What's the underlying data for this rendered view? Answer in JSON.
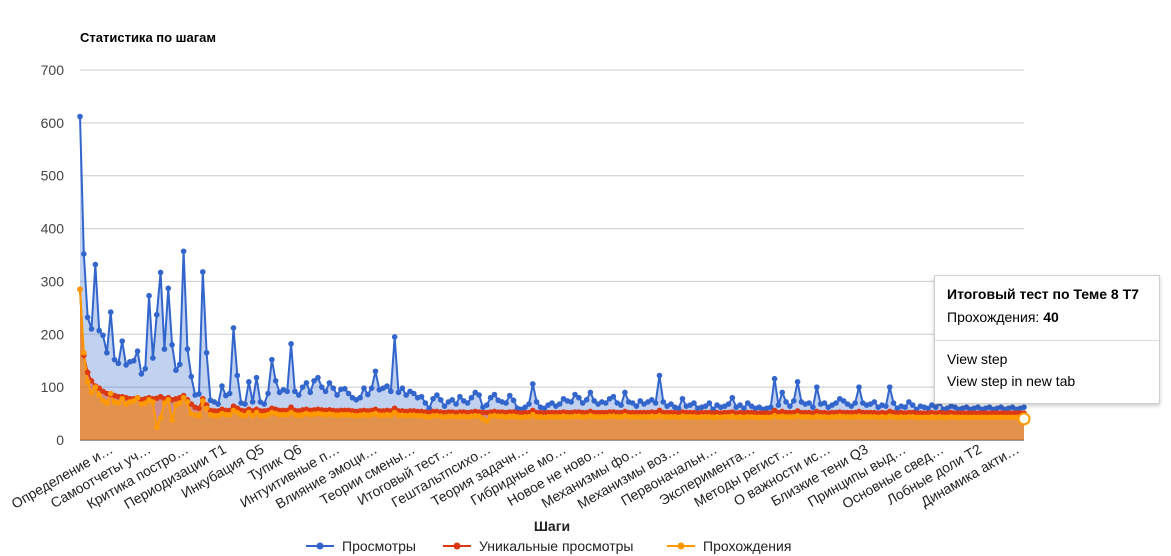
{
  "chart_data": {
    "type": "area",
    "title": "Статистика по шагам",
    "xlabel": "Шаги",
    "ylabel": "",
    "ylim": [
      0,
      700
    ],
    "yticks": [
      0,
      100,
      200,
      300,
      400,
      500,
      600,
      700
    ],
    "grid": true,
    "legend_position": "bottom",
    "x_tick_labels": [
      "Определение и…",
      "Самоотчеты уч…",
      "Критика постро…",
      "Периодизации Т1",
      "Инкубация Q5",
      "Тупик Q6",
      "Интуитивные п…",
      "Влияние эмоци…",
      "Теории смены…",
      "Итоговый тест…",
      "Гештальтпсихо…",
      "Теория задачн…",
      "Гибридные мо…",
      "Новое не ново…",
      "Механизмы фо…",
      "Механизмы воз…",
      "Первоначальн…",
      "Эксперимента…",
      "Методы регист…",
      "О важности ис…",
      "Близкие тени Q3",
      "Принципы выд…",
      "Основные свед…",
      "Лобные доли Т2",
      "Динамика акти…"
    ],
    "series": [
      {
        "name": "Просмотры",
        "color": "#3366cc",
        "values": [
          612,
          352,
          232,
          210,
          332,
          207,
          198,
          165,
          242,
          152,
          145,
          187,
          142,
          148,
          150,
          168,
          125,
          135,
          273,
          155,
          237,
          317,
          172,
          287,
          180,
          132,
          143,
          357,
          172,
          120,
          85,
          87,
          318,
          165,
          75,
          72,
          68,
          102,
          84,
          88,
          212,
          122,
          70,
          68,
          110,
          72,
          118,
          72,
          68,
          88,
          152,
          112,
          90,
          95,
          92,
          182,
          92,
          85,
          100,
          108,
          90,
          112,
          118,
          100,
          92,
          108,
          98,
          85,
          96,
          97,
          88,
          80,
          76,
          80,
          98,
          86,
          98,
          130,
          95,
          98,
          102,
          92,
          195,
          90,
          98,
          85,
          92,
          88,
          80,
          82,
          70,
          60,
          78,
          85,
          76,
          64,
          72,
          76,
          68,
          82,
          74,
          70,
          80,
          90,
          85,
          62,
          66,
          80,
          86,
          75,
          72,
          70,
          84,
          75,
          60,
          58,
          62,
          68,
          106,
          72,
          62,
          60,
          66,
          70,
          64,
          68,
          78,
          74,
          72,
          86,
          80,
          70,
          76,
          90,
          74,
          68,
          72,
          70,
          78,
          82,
          70,
          66,
          90,
          72,
          70,
          64,
          74,
          68,
          72,
          76,
          70,
          122,
          72,
          64,
          68,
          62,
          60,
          78,
          64,
          66,
          70,
          60,
          62,
          64,
          70,
          58,
          66,
          62,
          64,
          68,
          80,
          62,
          66,
          60,
          70,
          64,
          60,
          62,
          58,
          60,
          62,
          116,
          66,
          90,
          72,
          64,
          74,
          110,
          72,
          68,
          70,
          62,
          100,
          68,
          70,
          62,
          66,
          70,
          78,
          74,
          68,
          64,
          70,
          100,
          70,
          66,
          68,
          72,
          62,
          66,
          64,
          100,
          70,
          60,
          64,
          62,
          72,
          66,
          58,
          64,
          62,
          60,
          66,
          62,
          70,
          58,
          60,
          64,
          62,
          58,
          60,
          62,
          58,
          60,
          62,
          58,
          60,
          62,
          58,
          60,
          62,
          58,
          60,
          62,
          58,
          60,
          62
        ]
      },
      {
        "name": "Уникальные просмотры",
        "color": "#dc3912",
        "values": [
          285,
          160,
          128,
          112,
          102,
          98,
          92,
          88,
          86,
          84,
          82,
          82,
          80,
          78,
          78,
          80,
          76,
          78,
          80,
          78,
          79,
          82,
          78,
          80,
          76,
          78,
          80,
          84,
          76,
          68,
          62,
          60,
          78,
          66,
          56,
          55,
          55,
          58,
          56,
          56,
          64,
          60,
          56,
          55,
          58,
          55,
          58,
          55,
          55,
          56,
          60,
          58,
          56,
          56,
          56,
          62,
          56,
          55,
          57,
          58,
          56,
          57,
          58,
          57,
          56,
          57,
          56,
          55,
          56,
          56,
          56,
          55,
          54,
          55,
          56,
          55,
          56,
          58,
          55,
          55,
          56,
          55,
          60,
          55,
          55,
          54,
          55,
          55,
          54,
          54,
          53,
          52,
          54,
          54,
          53,
          52,
          53,
          53,
          52,
          53,
          53,
          52,
          53,
          54,
          53,
          52,
          52,
          53,
          54,
          53,
          53,
          52,
          53,
          53,
          52,
          51,
          52,
          52,
          56,
          52,
          52,
          51,
          52,
          52,
          52,
          52,
          53,
          52,
          52,
          53,
          53,
          52,
          52,
          54,
          52,
          52,
          52,
          52,
          53,
          53,
          52,
          52,
          54,
          52,
          52,
          52,
          52,
          52,
          52,
          53,
          52,
          56,
          52,
          52,
          52,
          52,
          51,
          53,
          52,
          52,
          52,
          51,
          52,
          52,
          52,
          51,
          52,
          51,
          52,
          52,
          53,
          51,
          52,
          51,
          52,
          52,
          51,
          51,
          51,
          51,
          51,
          56,
          52,
          54,
          52,
          52,
          52,
          55,
          52,
          52,
          52,
          51,
          54,
          52,
          52,
          51,
          52,
          52,
          53,
          52,
          52,
          52,
          52,
          54,
          52,
          52,
          52,
          52,
          51,
          52,
          51,
          54,
          52,
          51,
          52,
          51,
          52,
          52,
          51,
          51,
          51,
          51,
          52,
          51,
          52,
          51,
          51,
          52,
          51,
          51,
          51,
          51,
          51,
          51,
          51,
          51,
          51,
          51,
          51,
          51,
          51,
          51,
          51,
          51,
          51,
          51,
          51
        ]
      },
      {
        "name": "Прохождения",
        "color": "#ff9900",
        "values": [
          285,
          165,
          110,
          90,
          100,
          85,
          75,
          70,
          88,
          72,
          70,
          78,
          68,
          72,
          74,
          80,
          68,
          70,
          76,
          72,
          24,
          42,
          70,
          76,
          38,
          66,
          70,
          80,
          72,
          50,
          48,
          46,
          74,
          60,
          48,
          46,
          46,
          50,
          48,
          48,
          56,
          52,
          48,
          46,
          52,
          46,
          52,
          46,
          46,
          48,
          52,
          50,
          48,
          48,
          48,
          52,
          48,
          47,
          48,
          50,
          48,
          49,
          50,
          49,
          48,
          49,
          48,
          47,
          48,
          48,
          48,
          47,
          46,
          47,
          48,
          47,
          48,
          50,
          47,
          47,
          48,
          47,
          52,
          47,
          47,
          46,
          47,
          47,
          46,
          46,
          45,
          44,
          46,
          46,
          45,
          44,
          45,
          45,
          44,
          45,
          45,
          44,
          45,
          46,
          45,
          40,
          36,
          45,
          46,
          45,
          45,
          44,
          45,
          45,
          44,
          43,
          44,
          44,
          48,
          44,
          44,
          43,
          44,
          44,
          44,
          44,
          45,
          44,
          44,
          45,
          45,
          44,
          44,
          46,
          44,
          44,
          44,
          44,
          45,
          45,
          44,
          44,
          46,
          44,
          44,
          44,
          44,
          44,
          44,
          45,
          44,
          46,
          44,
          44,
          44,
          44,
          43,
          45,
          44,
          44,
          44,
          43,
          44,
          44,
          44,
          43,
          44,
          43,
          44,
          44,
          45,
          43,
          44,
          43,
          44,
          44,
          43,
          43,
          43,
          43,
          43,
          46,
          44,
          45,
          44,
          44,
          44,
          46,
          44,
          44,
          44,
          43,
          45,
          44,
          44,
          43,
          44,
          44,
          45,
          44,
          44,
          44,
          44,
          45,
          44,
          44,
          44,
          44,
          43,
          44,
          43,
          45,
          44,
          43,
          44,
          43,
          44,
          44,
          43,
          43,
          43,
          43,
          44,
          43,
          44,
          43,
          43,
          44,
          43,
          43,
          43,
          43,
          43,
          43,
          43,
          43,
          43,
          43,
          43,
          43,
          43,
          43,
          43,
          43,
          43,
          43,
          40
        ]
      }
    ]
  },
  "tooltip": {
    "title": "Итоговый тест по Теме 8 Т7",
    "metric_label": "Прохождения: ",
    "metric_value": "40",
    "action_view": "View step",
    "action_view_new_tab": "View step in new tab"
  }
}
